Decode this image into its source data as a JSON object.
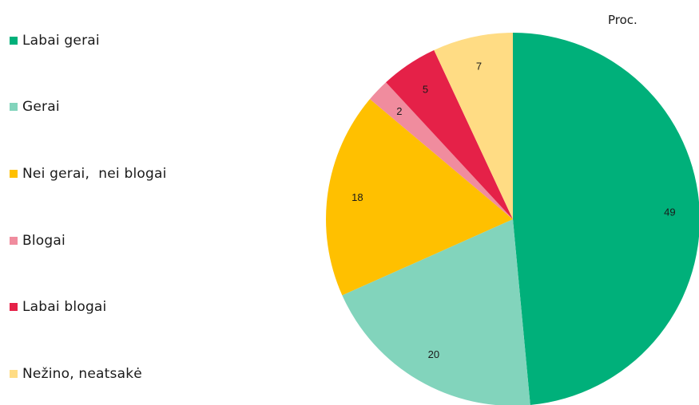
{
  "unit_label": "Proc.",
  "chart_data": {
    "type": "pie",
    "categories": [
      "Labai gerai",
      "Gerai",
      "Nei gerai,  nei blogai",
      "Blogai",
      "Labai blogai",
      "Nežino, neatsakė"
    ],
    "values": [
      49,
      20,
      18,
      2,
      5,
      7
    ],
    "colors": [
      "#00b07a",
      "#82d4bc",
      "#ffc000",
      "#f08c9e",
      "#e52148",
      "#ffdc84"
    ],
    "unit": "Proc.",
    "legend_position": "left"
  }
}
